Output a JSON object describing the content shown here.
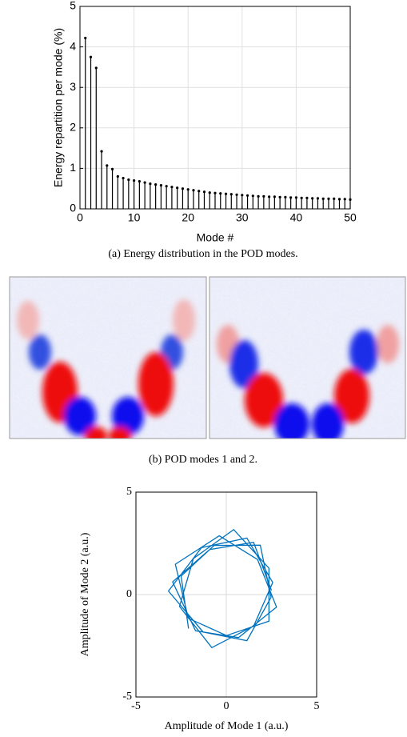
{
  "chart_data": [
    {
      "type": "stem",
      "ylabel": "Energy repartition per mode (%)",
      "xlabel": "Mode #",
      "color": "#000000",
      "x": [
        1,
        2,
        3,
        4,
        5,
        6,
        7,
        8,
        9,
        10,
        11,
        12,
        13,
        14,
        15,
        16,
        17,
        18,
        19,
        20,
        21,
        22,
        23,
        24,
        25,
        26,
        27,
        28,
        29,
        30,
        31,
        32,
        33,
        34,
        35,
        36,
        37,
        38,
        39,
        40,
        41,
        42,
        43,
        44,
        45,
        46,
        47,
        48,
        49,
        50
      ],
      "values": [
        4.22,
        3.75,
        3.48,
        1.42,
        1.07,
        0.98,
        0.8,
        0.76,
        0.72,
        0.7,
        0.68,
        0.65,
        0.62,
        0.6,
        0.58,
        0.56,
        0.54,
        0.52,
        0.5,
        0.48,
        0.46,
        0.44,
        0.42,
        0.4,
        0.39,
        0.38,
        0.37,
        0.36,
        0.35,
        0.34,
        0.33,
        0.32,
        0.31,
        0.31,
        0.3,
        0.3,
        0.29,
        0.29,
        0.28,
        0.28,
        0.27,
        0.27,
        0.26,
        0.26,
        0.25,
        0.25,
        0.25,
        0.24,
        0.24,
        0.23
      ],
      "xlim": [
        0,
        50
      ],
      "ylim": [
        0,
        5
      ],
      "xticks": [
        0,
        10,
        20,
        30,
        40,
        50
      ],
      "yticks": [
        0,
        1,
        2,
        3,
        4,
        5
      ],
      "grid": true
    },
    {
      "type": "line",
      "xlabel": "Amplitude of Mode 1 (a.u.)",
      "ylabel": "Amplitude of Mode 2 (a.u.)",
      "color": "#0072bd",
      "x": [
        2.5,
        1.51,
        -0.92,
        -2.97,
        -1.7,
        0.68,
        2.78,
        1.73,
        -0.39,
        -2.82,
        -2.1,
        0.01,
        2.36,
        2.36,
        0.41,
        -1.82,
        -2.59,
        -0.8,
        1.52,
        2.57,
        1.14,
        -1.37,
        -3.2,
        -1.28,
        1.14,
        2.48,
        1.88,
        -0.67,
        -2.5,
        -2.09
      ],
      "values": [
        0.2,
        2.55,
        2.2,
        0.62,
        -1.77,
        -2.1,
        -0.61,
        1.71,
        2.87,
        1.48,
        -1.16,
        -2.0,
        -1.3,
        1.29,
        3.17,
        1.76,
        -0.58,
        -2.59,
        -1.53,
        0.59,
        2.76,
        2.29,
        0.17,
        -1.83,
        -2.25,
        -0.13,
        2.41,
        2.4,
        0.9,
        -1.66
      ],
      "xlim": [
        -5,
        5
      ],
      "ylim": [
        -5,
        5
      ],
      "xticks": [
        -5,
        0,
        5
      ],
      "yticks": [
        -5,
        0,
        5
      ],
      "grid": false,
      "zero_lines": true
    }
  ],
  "captions": [
    "(a) Energy distribution in the POD modes.",
    "(b) POD modes 1 and 2."
  ]
}
